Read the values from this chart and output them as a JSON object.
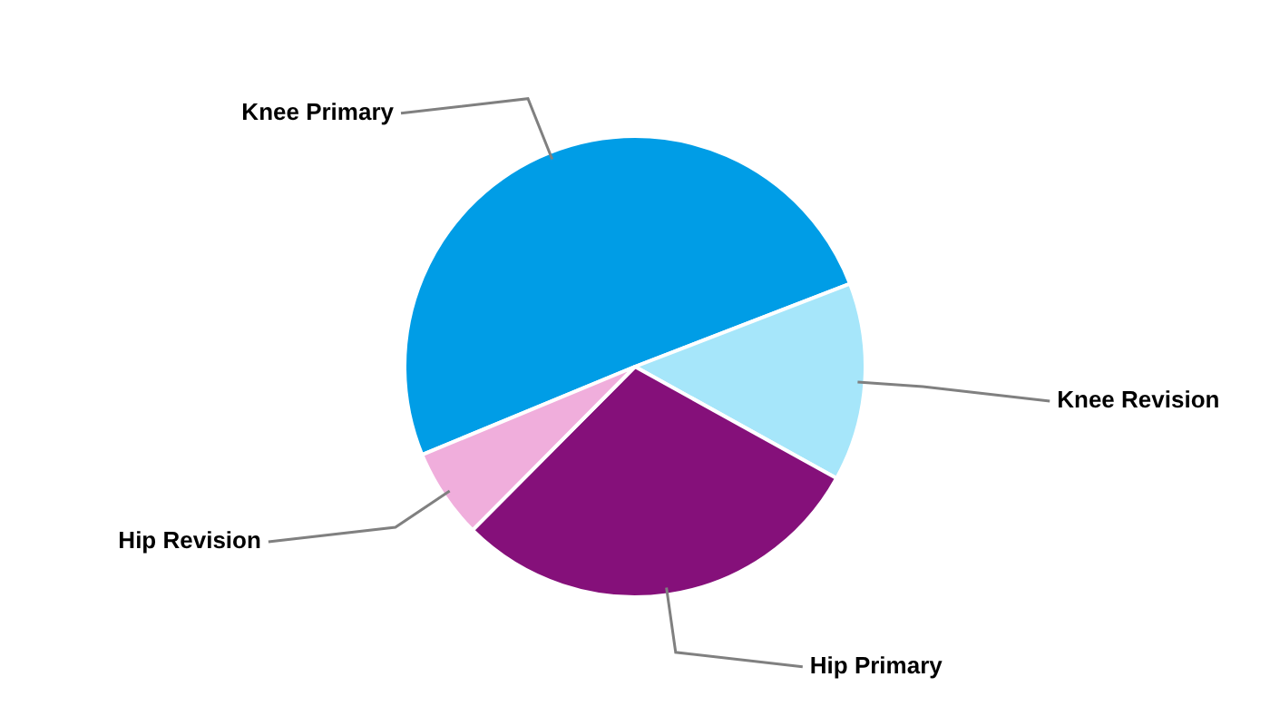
{
  "chart_data": {
    "type": "pie",
    "categories": [
      "Knee Primary",
      "Knee Revision",
      "Hip Primary",
      "Hip Revision"
    ],
    "values": [
      50.4,
      13.9,
      29.4,
      6.3
    ],
    "colors": [
      "#009de6",
      "#a6e6fa",
      "#85107a",
      "#f0aedc"
    ]
  }
}
